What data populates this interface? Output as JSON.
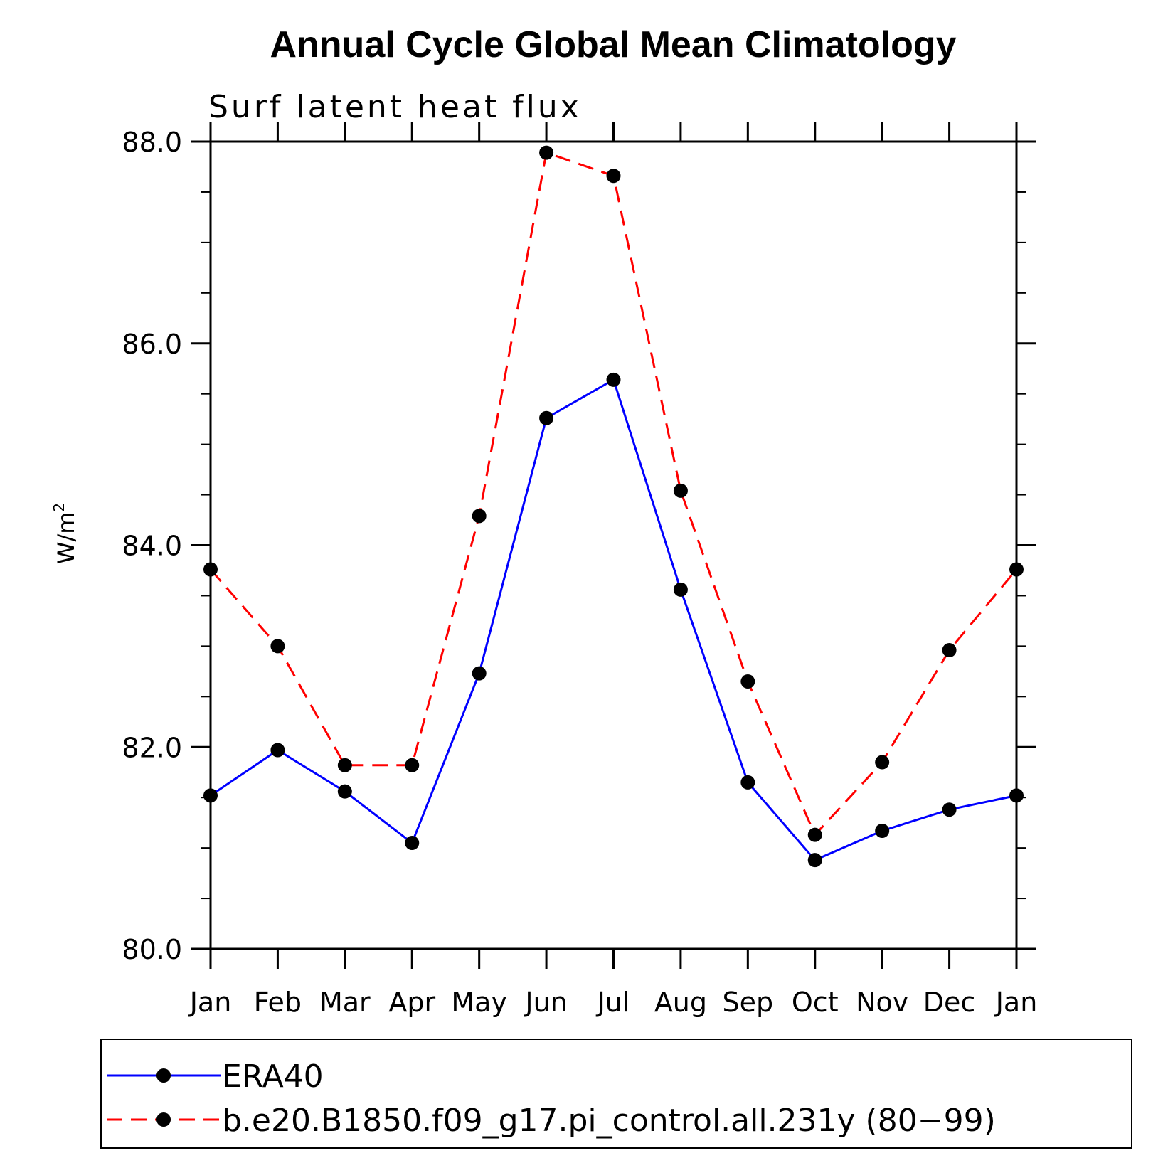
{
  "chart_data": {
    "type": "line",
    "title": "Annual Cycle Global Mean Climatology",
    "subtitle": "Surf latent heat flux",
    "ylabel": "W/m",
    "ylabel_sup": "2",
    "xlabel": "",
    "categories": [
      "Jan",
      "Feb",
      "Mar",
      "Apr",
      "May",
      "Jun",
      "Jul",
      "Aug",
      "Sep",
      "Oct",
      "Nov",
      "Dec",
      "Jan"
    ],
    "ylim": [
      80.0,
      88.0
    ],
    "yticks": [
      80.0,
      82.0,
      84.0,
      86.0,
      88.0
    ],
    "ytick_labels": [
      "80.0",
      "82.0",
      "84.0",
      "86.0",
      "88.0"
    ],
    "y_minor_step": 0.5,
    "grid": false,
    "legend_position": "bottom",
    "series": [
      {
        "name": "ERA40",
        "color": "#0000ff",
        "style": "solid",
        "marker": "dot",
        "values": [
          81.52,
          81.97,
          81.56,
          81.05,
          82.73,
          85.26,
          85.64,
          83.56,
          81.65,
          80.88,
          81.17,
          81.38,
          81.52
        ]
      },
      {
        "name": "b.e20.B1850.f09_g17.pi_control.all.231y (80−99)",
        "color": "#ff0000",
        "style": "dashed",
        "marker": "dot",
        "values": [
          83.76,
          83.0,
          81.82,
          81.82,
          84.29,
          87.89,
          87.66,
          84.54,
          82.65,
          81.13,
          81.85,
          82.96,
          83.76
        ]
      }
    ]
  }
}
